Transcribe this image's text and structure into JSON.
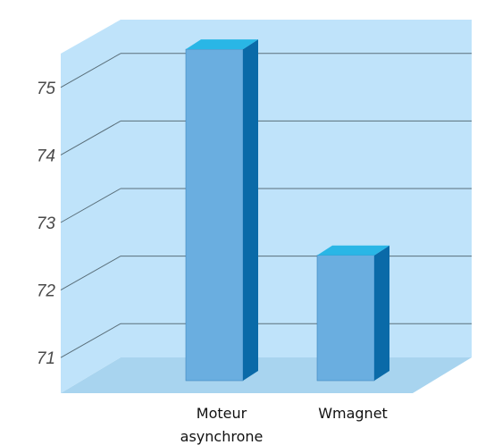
{
  "chart_data": {
    "type": "bar",
    "three_d": true,
    "categories": [
      [
        "Moteur",
        "asynchrone"
      ],
      [
        "Wmagnet"
      ]
    ],
    "values": [
      75.3,
      72.25
    ],
    "ylim": [
      70.5,
      75.5
    ],
    "yticks": [
      71,
      72,
      73,
      74,
      75
    ],
    "grid": true,
    "legend": "none",
    "colors": {
      "wall": "#bfe3fa",
      "floor": "#a8d4ef",
      "gridline": "#5a6f7a",
      "bar_front": "#6aaee0",
      "bar_side": "#0a6aa8",
      "bar_top": "#29b6e6"
    }
  }
}
